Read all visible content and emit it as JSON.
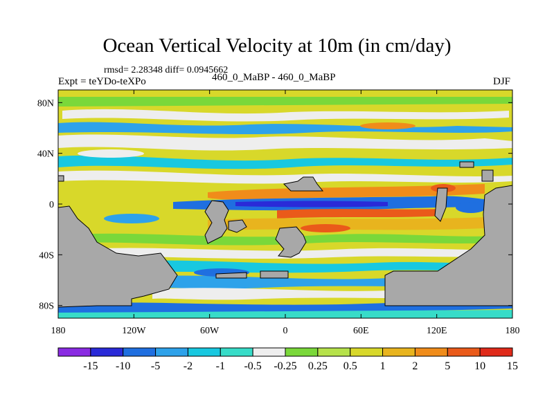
{
  "chart_data": {
    "type": "heatmap",
    "title": "Ocean Vertical Velocity at 10m (in cm/day)",
    "stats": "rmsd= 2.28348 diff= 0.0945662",
    "experiment": "Expt = teYDo-teXPo",
    "case": "460_0_MaBP - 460_0_MaBP",
    "season": "DJF",
    "x_ticks": [
      "180",
      "120W",
      "60W",
      "0",
      "60E",
      "120E",
      "180"
    ],
    "y_ticks": [
      "80N",
      "40N",
      "0",
      "40S",
      "80S"
    ],
    "xlim": [
      -180,
      180
    ],
    "ylim": [
      -90,
      90
    ],
    "colorbar_levels": [
      "-15",
      "-10",
      "-5",
      "-2",
      "-1",
      "-0.5",
      "-0.25",
      "0.25",
      "0.5",
      "1",
      "2",
      "5",
      "10",
      "15"
    ],
    "colorbar_colors": [
      "#8a2be2",
      "#2a2ad8",
      "#1f6fe0",
      "#2ea2ea",
      "#18c8e0",
      "#37dcc8",
      "#eeeeee",
      "#7ad83a",
      "#b6e24a",
      "#d8d82a",
      "#e8b41e",
      "#f08c1a",
      "#ea5a1a",
      "#e02a1a"
    ],
    "land_color": "#a8a8a8"
  }
}
